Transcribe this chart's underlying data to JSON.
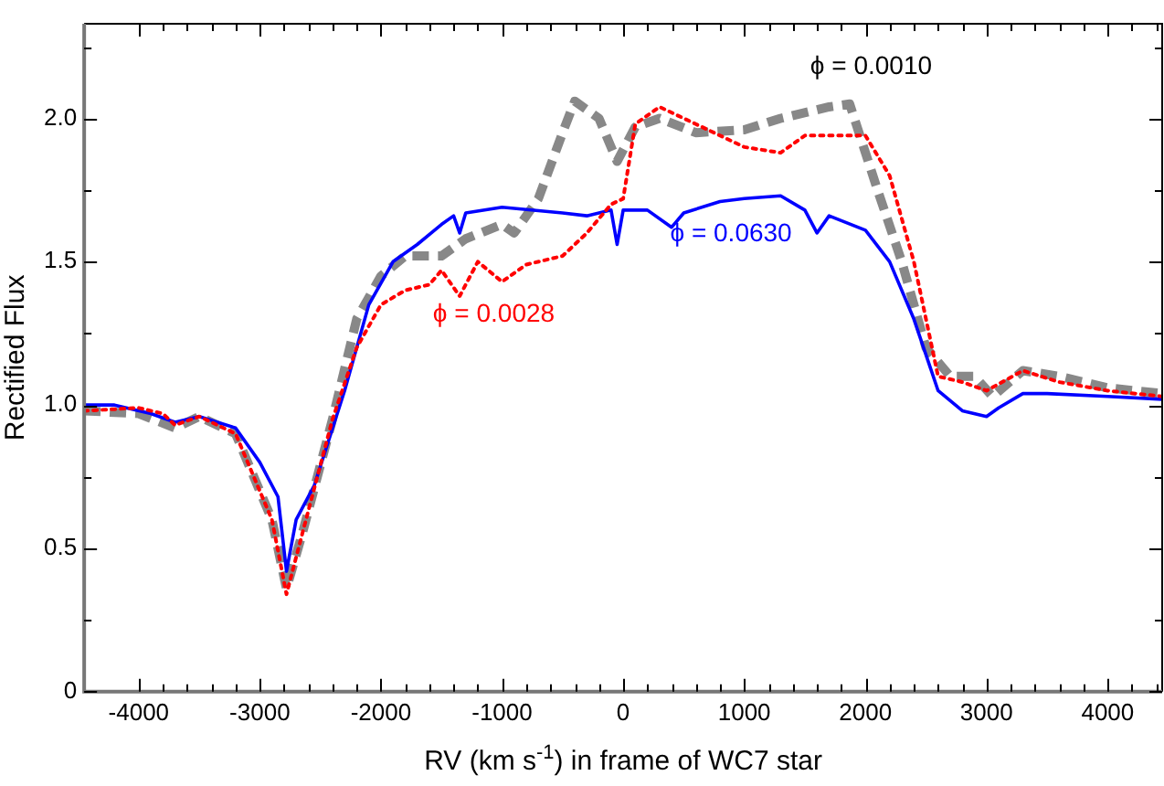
{
  "chart_data": {
    "type": "line",
    "xlabel": "RV (km s$^{-1}$) in frame of WC7 star",
    "ylabel": "Rectified Flux",
    "xlim": [
      -4450,
      4450
    ],
    "ylim": [
      0,
      2.33
    ],
    "xticks": [
      -4000,
      {
        "value": -3800,
        "label": null
      },
      {
        "value": -3600,
        "label": null
      },
      {
        "value": -3400,
        "label": null
      },
      {
        "value": -3200,
        "label": null
      },
      -3000,
      {
        "value": -2800,
        "label": null
      },
      {
        "value": -2600,
        "label": null
      },
      {
        "value": -2400,
        "label": null
      },
      {
        "value": -2200,
        "label": null
      },
      -2000,
      {
        "value": -1800,
        "label": null
      },
      {
        "value": -1600,
        "label": null
      },
      {
        "value": -1400,
        "label": null
      },
      {
        "value": -1200,
        "label": null
      },
      -1000,
      {
        "value": -800,
        "label": null
      },
      {
        "value": -600,
        "label": null
      },
      {
        "value": -400,
        "label": null
      },
      {
        "value": -200,
        "label": null
      },
      0,
      {
        "value": 200,
        "label": null
      },
      {
        "value": 400,
        "label": null
      },
      {
        "value": 600,
        "label": null
      },
      {
        "value": 800,
        "label": null
      },
      1000,
      {
        "value": 1200,
        "label": null
      },
      {
        "value": 1400,
        "label": null
      },
      {
        "value": 1600,
        "label": null
      },
      {
        "value": 1800,
        "label": null
      },
      2000,
      {
        "value": 2200,
        "label": null
      },
      {
        "value": 2400,
        "label": null
      },
      {
        "value": 2600,
        "label": null
      },
      {
        "value": 2800,
        "label": null
      },
      3000,
      {
        "value": 3200,
        "label": null
      },
      {
        "value": 3400,
        "label": null
      },
      {
        "value": 3600,
        "label": null
      },
      {
        "value": 3800,
        "label": null
      },
      4000,
      {
        "value": 4200,
        "label": null
      },
      {
        "value": 4400,
        "label": null
      }
    ],
    "yticks": [
      0,
      {
        "value": 0.25,
        "label": null
      },
      0.5,
      {
        "value": 0.75,
        "label": null
      },
      {
        "value": 1.0,
        "label": "1.0"
      },
      {
        "value": 1.25,
        "label": null
      },
      1.5,
      {
        "value": 1.75,
        "label": null
      },
      {
        "value": 2.0,
        "label": "2.0"
      },
      {
        "value": 2.25,
        "label": null
      }
    ],
    "grid": false,
    "legend": false,
    "marker": "none",
    "series": [
      {
        "name": "ϕ = 0.0010",
        "color": "#888888",
        "line_style": "dashed",
        "x": [
          -4450,
          -4000,
          -3700,
          -3500,
          -3200,
          -2900,
          -2780,
          -2650,
          -2400,
          -2200,
          -2000,
          -1800,
          -1500,
          -1300,
          -1000,
          -900,
          -700,
          -500,
          -400,
          -200,
          -100,
          -50,
          100,
          300,
          600,
          1000,
          1300,
          1700,
          1870,
          2100,
          2300,
          2500,
          2700,
          2900,
          3050,
          3300,
          3600,
          4000,
          4450
        ],
        "values": [
          0.98,
          0.97,
          0.92,
          0.96,
          0.9,
          0.6,
          0.36,
          0.55,
          0.95,
          1.3,
          1.45,
          1.52,
          1.52,
          1.58,
          1.63,
          1.6,
          1.72,
          1.95,
          2.06,
          2.0,
          1.9,
          1.85,
          1.97,
          2.0,
          1.95,
          1.96,
          2.0,
          2.04,
          2.05,
          1.75,
          1.5,
          1.2,
          1.1,
          1.1,
          1.03,
          1.12,
          1.1,
          1.06,
          1.04
        ]
      },
      {
        "name": "ϕ = 0.0630",
        "color": "#0000ff",
        "line_style": "solid",
        "x": [
          -4450,
          -4200,
          -3900,
          -3700,
          -3500,
          -3200,
          -3000,
          -2850,
          -2780,
          -2700,
          -2550,
          -2300,
          -2100,
          -1900,
          -1700,
          -1500,
          -1400,
          -1350,
          -1300,
          -1000,
          -500,
          -300,
          -100,
          -50,
          0,
          200,
          400,
          500,
          800,
          1000,
          1300,
          1500,
          1600,
          1700,
          2000,
          2200,
          2400,
          2600,
          2800,
          3000,
          3100,
          3300,
          3500,
          4000,
          4450
        ],
        "values": [
          1.0,
          1.0,
          0.97,
          0.94,
          0.96,
          0.92,
          0.8,
          0.68,
          0.42,
          0.6,
          0.72,
          1.05,
          1.35,
          1.5,
          1.56,
          1.63,
          1.66,
          1.6,
          1.67,
          1.69,
          1.67,
          1.66,
          1.68,
          1.56,
          1.68,
          1.68,
          1.62,
          1.67,
          1.71,
          1.72,
          1.73,
          1.68,
          1.6,
          1.66,
          1.61,
          1.5,
          1.3,
          1.05,
          0.98,
          0.96,
          0.99,
          1.04,
          1.04,
          1.03,
          1.02
        ]
      },
      {
        "name": "ϕ = 0.0028",
        "color": "#ff0000",
        "line_style": "dotted",
        "x": [
          -4450,
          -4000,
          -3800,
          -3700,
          -3500,
          -3200,
          -2900,
          -2780,
          -2650,
          -2400,
          -2200,
          -2000,
          -1800,
          -1600,
          -1500,
          -1350,
          -1200,
          -1000,
          -800,
          -500,
          -300,
          -100,
          0,
          100,
          300,
          600,
          1000,
          1300,
          1500,
          2000,
          2200,
          2400,
          2600,
          2800,
          3000,
          3300,
          3600,
          4000,
          4450
        ],
        "values": [
          0.98,
          0.99,
          0.97,
          0.93,
          0.96,
          0.9,
          0.6,
          0.34,
          0.55,
          0.95,
          1.2,
          1.35,
          1.4,
          1.42,
          1.47,
          1.38,
          1.5,
          1.43,
          1.49,
          1.52,
          1.6,
          1.7,
          1.72,
          1.98,
          2.04,
          1.98,
          1.9,
          1.88,
          1.94,
          1.94,
          1.8,
          1.5,
          1.1,
          1.08,
          1.05,
          1.12,
          1.08,
          1.05,
          1.03
        ]
      }
    ]
  }
}
